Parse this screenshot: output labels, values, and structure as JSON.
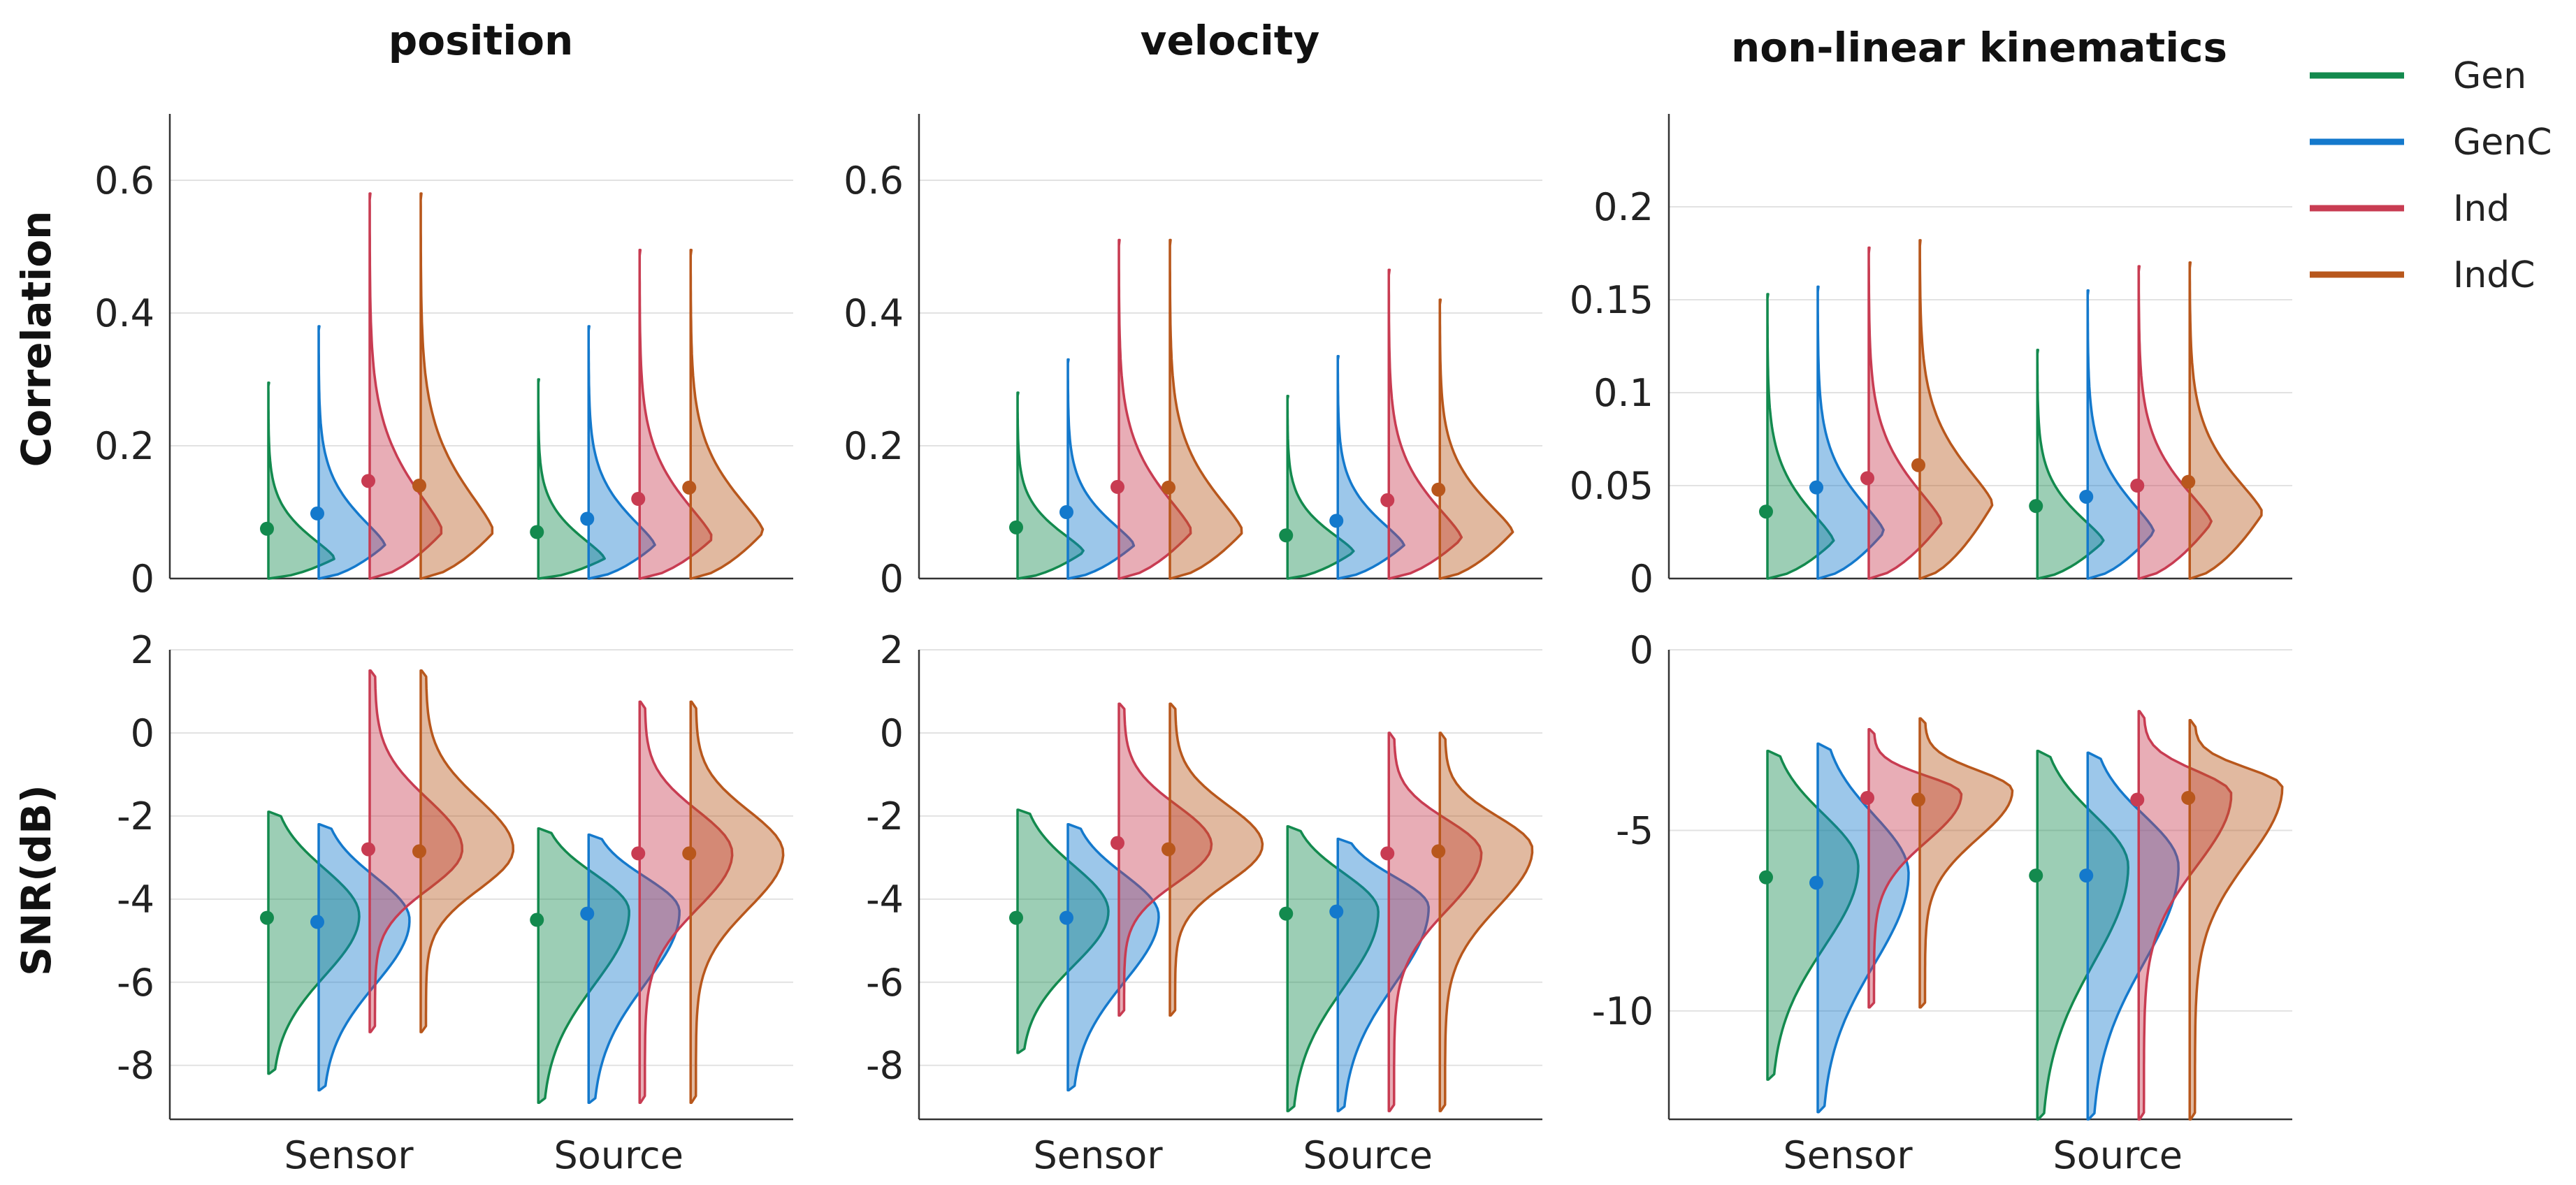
{
  "chart_data": {
    "type": "violin",
    "layout": "2x3 grid of half-violin plots",
    "legend": {
      "position": "top-right",
      "entries": [
        {
          "name": "Gen",
          "color": "#138a4e"
        },
        {
          "name": "GenC",
          "color": "#1479cc"
        },
        {
          "name": "Ind",
          "color": "#c83c52"
        },
        {
          "name": "IndC",
          "color": "#b8571c"
        }
      ]
    },
    "row_labels": [
      "Correlation",
      "SNR(dB)"
    ],
    "column_titles": [
      "position",
      "velocity",
      "non-linear kinematics"
    ],
    "categories": [
      "Sensor",
      "Source"
    ],
    "series_order": [
      "Gen",
      "GenC",
      "Ind",
      "IndC"
    ],
    "panels": [
      {
        "title": "position",
        "ylabel": "Correlation",
        "ylim": [
          0,
          0.7
        ],
        "yticks": [
          0,
          0.2,
          0.4,
          0.6
        ],
        "ytick_labels": [
          "0",
          "0.2",
          "0.4",
          "0.6"
        ],
        "groups": [
          {
            "category": "Sensor",
            "violins": [
              {
                "series": "Gen",
                "min": 0,
                "max": 0.295,
                "mean": 0.075,
                "mode": 0.03,
                "shape": "right_skew"
              },
              {
                "series": "GenC",
                "min": 0,
                "max": 0.38,
                "mean": 0.098,
                "mode": 0.05,
                "shape": "right_skew"
              },
              {
                "series": "Ind",
                "min": 0,
                "max": 0.58,
                "mean": 0.147,
                "mode": 0.07,
                "shape": "right_skew"
              },
              {
                "series": "IndC",
                "min": 0,
                "max": 0.58,
                "mean": 0.14,
                "mode": 0.07,
                "shape": "right_skew"
              }
            ]
          },
          {
            "category": "Source",
            "violins": [
              {
                "series": "Gen",
                "min": 0,
                "max": 0.3,
                "mean": 0.07,
                "mode": 0.03,
                "shape": "right_skew"
              },
              {
                "series": "GenC",
                "min": 0,
                "max": 0.38,
                "mean": 0.09,
                "mode": 0.05,
                "shape": "right_skew"
              },
              {
                "series": "Ind",
                "min": 0,
                "max": 0.495,
                "mean": 0.12,
                "mode": 0.06,
                "shape": "right_skew"
              },
              {
                "series": "IndC",
                "min": 0,
                "max": 0.495,
                "mean": 0.137,
                "mode": 0.07,
                "shape": "right_skew"
              }
            ]
          }
        ]
      },
      {
        "title": "velocity",
        "ylabel": "",
        "ylim": [
          0,
          0.7
        ],
        "yticks": [
          0,
          0.2,
          0.4,
          0.6
        ],
        "ytick_labels": [
          "0",
          "0.2",
          "0.4",
          "0.6"
        ],
        "groups": [
          {
            "category": "Sensor",
            "violins": [
              {
                "series": "Gen",
                "min": 0,
                "max": 0.28,
                "mean": 0.077,
                "mode": 0.04,
                "shape": "right_skew"
              },
              {
                "series": "GenC",
                "min": 0,
                "max": 0.33,
                "mean": 0.1,
                "mode": 0.05,
                "shape": "right_skew"
              },
              {
                "series": "Ind",
                "min": 0,
                "max": 0.51,
                "mean": 0.138,
                "mode": 0.07,
                "shape": "right_skew"
              },
              {
                "series": "IndC",
                "min": 0,
                "max": 0.51,
                "mean": 0.137,
                "mode": 0.07,
                "shape": "right_skew"
              }
            ]
          },
          {
            "category": "Source",
            "violins": [
              {
                "series": "Gen",
                "min": 0,
                "max": 0.275,
                "mean": 0.065,
                "mode": 0.04,
                "shape": "right_skew"
              },
              {
                "series": "GenC",
                "min": 0,
                "max": 0.335,
                "mean": 0.087,
                "mode": 0.05,
                "shape": "right_skew"
              },
              {
                "series": "Ind",
                "min": 0,
                "max": 0.465,
                "mean": 0.118,
                "mode": 0.06,
                "shape": "right_skew"
              },
              {
                "series": "IndC",
                "min": 0,
                "max": 0.42,
                "mean": 0.134,
                "mode": 0.07,
                "shape": "right_skew"
              }
            ]
          }
        ]
      },
      {
        "title": "non-linear kinematics",
        "ylabel": "",
        "ylim": [
          0,
          0.25
        ],
        "yticks": [
          0,
          0.05,
          0.1,
          0.15,
          0.2
        ],
        "ytick_labels": [
          "0",
          "0.05",
          "0.1",
          "0.15",
          "0.2"
        ],
        "groups": [
          {
            "category": "Sensor",
            "violins": [
              {
                "series": "Gen",
                "min": 0,
                "max": 0.153,
                "mean": 0.036,
                "mode": 0.02,
                "shape": "right_skew"
              },
              {
                "series": "GenC",
                "min": 0,
                "max": 0.157,
                "mean": 0.049,
                "mode": 0.025,
                "shape": "right_skew"
              },
              {
                "series": "Ind",
                "min": 0,
                "max": 0.178,
                "mean": 0.054,
                "mode": 0.03,
                "shape": "right_skew"
              },
              {
                "series": "IndC",
                "min": 0,
                "max": 0.182,
                "mean": 0.061,
                "mode": 0.04,
                "shape": "right_skew"
              }
            ]
          },
          {
            "category": "Source",
            "violins": [
              {
                "series": "Gen",
                "min": 0,
                "max": 0.123,
                "mean": 0.039,
                "mode": 0.02,
                "shape": "right_skew"
              },
              {
                "series": "GenC",
                "min": 0,
                "max": 0.155,
                "mean": 0.044,
                "mode": 0.025,
                "shape": "right_skew"
              },
              {
                "series": "Ind",
                "min": 0,
                "max": 0.168,
                "mean": 0.05,
                "mode": 0.03,
                "shape": "right_skew"
              },
              {
                "series": "IndC",
                "min": 0,
                "max": 0.17,
                "mean": 0.052,
                "mode": 0.035,
                "shape": "right_skew"
              }
            ]
          }
        ]
      },
      {
        "title": "position",
        "ylabel": "SNR(dB)",
        "ylim": [
          -9.3,
          2
        ],
        "yticks": [
          -8,
          -6,
          -4,
          -2,
          0,
          2
        ],
        "ytick_labels": [
          "-8",
          "-6",
          "-4",
          "-2",
          "0",
          "2"
        ],
        "groups": [
          {
            "category": "Sensor",
            "violins": [
              {
                "series": "Gen",
                "min": -8.2,
                "max": -1.9,
                "mean": -4.45,
                "mode": -4.4,
                "shape": "broad"
              },
              {
                "series": "GenC",
                "min": -8.6,
                "max": -2.2,
                "mean": -4.55,
                "mode": -4.5,
                "shape": "broad"
              },
              {
                "series": "Ind",
                "min": -7.2,
                "max": 1.5,
                "mean": -2.8,
                "mode": -2.8,
                "shape": "peaked"
              },
              {
                "series": "IndC",
                "min": -7.2,
                "max": 1.5,
                "mean": -2.85,
                "mode": -2.8,
                "shape": "peaked"
              }
            ]
          },
          {
            "category": "Source",
            "violins": [
              {
                "series": "Gen",
                "min": -8.9,
                "max": -2.3,
                "mean": -4.5,
                "mode": -4.3,
                "shape": "broad"
              },
              {
                "series": "GenC",
                "min": -8.9,
                "max": -2.45,
                "mean": -4.35,
                "mode": -4.3,
                "shape": "broad"
              },
              {
                "series": "Ind",
                "min": -8.9,
                "max": 0.75,
                "mean": -2.9,
                "mode": -2.9,
                "shape": "peaked"
              },
              {
                "series": "IndC",
                "min": -8.9,
                "max": 0.75,
                "mean": -2.9,
                "mode": -2.9,
                "shape": "peaked"
              }
            ]
          }
        ]
      },
      {
        "title": "velocity",
        "ylabel": "",
        "ylim": [
          -9.3,
          2
        ],
        "yticks": [
          -8,
          -6,
          -4,
          -2,
          0,
          2
        ],
        "ytick_labels": [
          "-8",
          "-6",
          "-4",
          "-2",
          "0",
          "2"
        ],
        "groups": [
          {
            "category": "Sensor",
            "violins": [
              {
                "series": "Gen",
                "min": -7.7,
                "max": -1.85,
                "mean": -4.45,
                "mode": -4.3,
                "shape": "broad"
              },
              {
                "series": "GenC",
                "min": -8.6,
                "max": -2.2,
                "mean": -4.45,
                "mode": -4.4,
                "shape": "broad"
              },
              {
                "series": "Ind",
                "min": -6.8,
                "max": 0.7,
                "mean": -2.65,
                "mode": -2.7,
                "shape": "peaked"
              },
              {
                "series": "IndC",
                "min": -6.8,
                "max": 0.7,
                "mean": -2.8,
                "mode": -2.7,
                "shape": "peaked"
              }
            ]
          },
          {
            "category": "Source",
            "violins": [
              {
                "series": "Gen",
                "min": -9.1,
                "max": -2.25,
                "mean": -4.35,
                "mode": -4.3,
                "shape": "broad"
              },
              {
                "series": "GenC",
                "min": -9.1,
                "max": -2.55,
                "mean": -4.3,
                "mode": -4.2,
                "shape": "broad"
              },
              {
                "series": "Ind",
                "min": -9.1,
                "max": 0,
                "mean": -2.9,
                "mode": -2.9,
                "shape": "peaked"
              },
              {
                "series": "IndC",
                "min": -9.1,
                "max": 0,
                "mean": -2.85,
                "mode": -2.8,
                "shape": "peaked"
              }
            ]
          }
        ]
      },
      {
        "title": "non-linear kinematics",
        "ylabel": "",
        "ylim": [
          -13,
          0
        ],
        "yticks": [
          -10,
          -5,
          0
        ],
        "ytick_labels": [
          "-10",
          "-5",
          "0"
        ],
        "groups": [
          {
            "category": "Sensor",
            "violins": [
              {
                "series": "Gen",
                "min": -11.9,
                "max": -2.8,
                "mean": -6.3,
                "mode": -6.0,
                "shape": "broad"
              },
              {
                "series": "GenC",
                "min": -12.8,
                "max": -2.6,
                "mean": -6.45,
                "mode": -6.2,
                "shape": "broad"
              },
              {
                "series": "Ind",
                "min": -9.9,
                "max": -2.2,
                "mean": -4.1,
                "mode": -4.0,
                "shape": "peaked"
              },
              {
                "series": "IndC",
                "min": -9.9,
                "max": -1.9,
                "mean": -4.15,
                "mode": -3.9,
                "shape": "peaked"
              }
            ]
          },
          {
            "category": "Source",
            "violins": [
              {
                "series": "Gen",
                "min": -13.0,
                "max": -2.8,
                "mean": -6.25,
                "mode": -6.0,
                "shape": "broad"
              },
              {
                "series": "GenC",
                "min": -13.0,
                "max": -2.85,
                "mean": -6.25,
                "mode": -6.0,
                "shape": "broad"
              },
              {
                "series": "Ind",
                "min": -13.0,
                "max": -1.7,
                "mean": -4.15,
                "mode": -4.0,
                "shape": "peaked"
              },
              {
                "series": "IndC",
                "min": -13.0,
                "max": -1.95,
                "mean": -4.1,
                "mode": -3.8,
                "shape": "peaked"
              }
            ]
          }
        ]
      }
    ]
  }
}
